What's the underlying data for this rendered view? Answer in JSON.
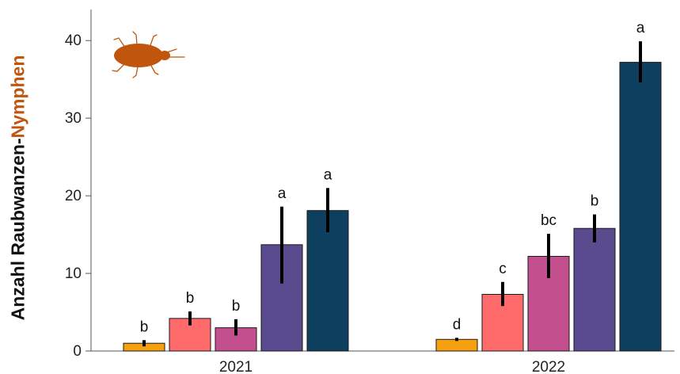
{
  "chart_data": {
    "type": "bar",
    "ylabel_prefix": "Anzahl Raubwanzen-",
    "ylabel_accent": "Nymphen",
    "ylim": [
      0,
      44
    ],
    "yticks": [
      "0",
      "10",
      "20",
      "30",
      "40"
    ],
    "groups": [
      {
        "label": "2021",
        "bars": [
          {
            "value": 1.0,
            "err_low": 0.6,
            "err_high": 1.4,
            "letter": "b",
            "color": "#f5a10e"
          },
          {
            "value": 4.2,
            "err_low": 3.3,
            "err_high": 5.1,
            "letter": "b",
            "color": "#ff6a6a"
          },
          {
            "value": 3.0,
            "err_low": 2.0,
            "err_high": 4.1,
            "letter": "b",
            "color": "#c44f8e"
          },
          {
            "value": 13.7,
            "err_low": 8.7,
            "err_high": 18.6,
            "letter": "a",
            "color": "#5a4b8e"
          },
          {
            "value": 18.1,
            "err_low": 15.3,
            "err_high": 21.0,
            "letter": "a",
            "color": "#0f3f5e"
          }
        ]
      },
      {
        "label": "2022",
        "bars": [
          {
            "value": 1.5,
            "err_low": 1.3,
            "err_high": 1.7,
            "letter": "d",
            "color": "#f5a10e"
          },
          {
            "value": 7.3,
            "err_low": 5.8,
            "err_high": 8.9,
            "letter": "c",
            "color": "#ff6a6a"
          },
          {
            "value": 12.2,
            "err_low": 9.4,
            "err_high": 15.1,
            "letter": "bc",
            "color": "#c44f8e"
          },
          {
            "value": 15.8,
            "err_low": 14.0,
            "err_high": 17.6,
            "letter": "b",
            "color": "#5a4b8e"
          },
          {
            "value": 37.2,
            "err_low": 34.6,
            "err_high": 39.9,
            "letter": "a",
            "color": "#0f3f5e"
          }
        ]
      }
    ],
    "icon": "bug-icon",
    "icon_color": "#c0560e"
  }
}
